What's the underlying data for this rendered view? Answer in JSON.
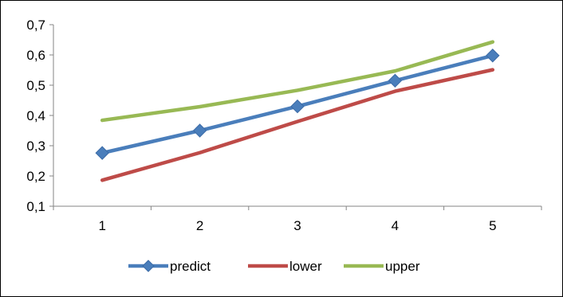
{
  "chart_data": {
    "type": "line",
    "title": "",
    "xlabel": "",
    "ylabel": "",
    "x": [
      1,
      2,
      3,
      4,
      5
    ],
    "x_tick_labels": [
      "1",
      "2",
      "3",
      "4",
      "5"
    ],
    "ylim": [
      0.1,
      0.7
    ],
    "y_ticks": [
      0.1,
      0.2,
      0.3,
      0.4,
      0.5,
      0.6,
      0.7
    ],
    "y_tick_labels": [
      "0,1",
      "0,2",
      "0,3",
      "0,4",
      "0,5",
      "0,6",
      "0,7"
    ],
    "grid": false,
    "legend_position": "bottom",
    "series": [
      {
        "name": "predict",
        "values": [
          0.276,
          0.35,
          0.43,
          0.515,
          0.598
        ],
        "color": "#4a7ebb",
        "marker": "diamond"
      },
      {
        "name": "lower",
        "values": [
          0.186,
          0.277,
          0.38,
          0.48,
          0.551
        ],
        "color": "#be4b48",
        "marker": "none"
      },
      {
        "name": "upper",
        "values": [
          0.384,
          0.429,
          0.483,
          0.547,
          0.643
        ],
        "color": "#98b954",
        "marker": "none"
      }
    ]
  }
}
